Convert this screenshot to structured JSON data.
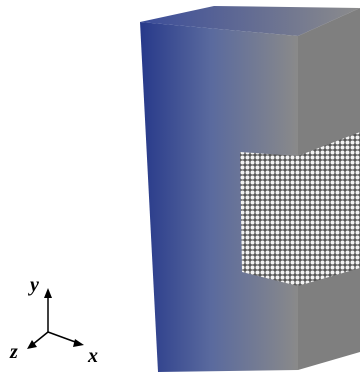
{
  "axis_triad": {
    "y": "y",
    "z": "z",
    "x": "x"
  }
}
